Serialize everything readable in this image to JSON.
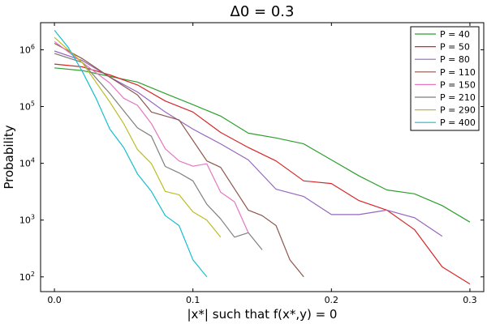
{
  "chart_data": {
    "type": "line",
    "title": "Δ0 = 0.3",
    "xlabel": "|x*| such that f(x*,y) = 0",
    "ylabel": "Probability",
    "xlim": [
      -0.01,
      0.31
    ],
    "ylim": [
      55,
      3000000
    ],
    "y_scale": "log",
    "grid": false,
    "legend_position": "top-right",
    "x_ticks": [
      0.0,
      0.1,
      0.2,
      0.3
    ],
    "x_tick_labels": [
      "0.0",
      "0.1",
      "0.2",
      "0.3"
    ],
    "y_ticks": [
      100,
      1000,
      10000,
      100000,
      1000000
    ],
    "y_tick_labels": [
      {
        "base": "10",
        "exp": "2"
      },
      {
        "base": "10",
        "exp": "3"
      },
      {
        "base": "10",
        "exp": "4"
      },
      {
        "base": "10",
        "exp": "5"
      },
      {
        "base": "10",
        "exp": "6"
      }
    ],
    "series": [
      {
        "name": "P = 40",
        "color": "#2ca02c",
        "x": [
          0,
          0.02,
          0.04,
          0.06,
          0.08,
          0.1,
          0.12,
          0.14,
          0.16,
          0.18,
          0.2,
          0.22,
          0.24,
          0.26,
          0.28,
          0.3
        ],
        "y": [
          480000,
          430000,
          340000,
          270000,
          170000,
          108000,
          68000,
          34000,
          28000,
          22000,
          11500,
          6000,
          3400,
          2900,
          1800,
          920
        ]
      },
      {
        "name": "P = 50",
        "color": "#d62728",
        "x": [
          0,
          0.02,
          0.04,
          0.06,
          0.08,
          0.1,
          0.12,
          0.14,
          0.16,
          0.18,
          0.2,
          0.22,
          0.24,
          0.26,
          0.28,
          0.3
        ],
        "y": [
          560000,
          500000,
          360000,
          240000,
          125000,
          80000,
          35000,
          19000,
          11000,
          4900,
          4400,
          2200,
          1500,
          680,
          150,
          75
        ]
      },
      {
        "name": "P = 80",
        "color": "#9467bd",
        "x": [
          0,
          0.02,
          0.04,
          0.06,
          0.08,
          0.1,
          0.12,
          0.14,
          0.16,
          0.18,
          0.2,
          0.22,
          0.24,
          0.26,
          0.28
        ],
        "y": [
          950000,
          650000,
          330000,
          180000,
          80000,
          40000,
          22000,
          11500,
          3500,
          2600,
          1250,
          1250,
          1500,
          1100,
          520
        ]
      },
      {
        "name": "P = 110",
        "color": "#8c564b",
        "x": [
          0,
          0.02,
          0.04,
          0.06,
          0.07,
          0.09,
          0.11,
          0.12,
          0.14,
          0.15,
          0.16,
          0.17,
          0.18
        ],
        "y": [
          1300000,
          700000,
          330000,
          160000,
          80000,
          58000,
          11000,
          8500,
          1500,
          1200,
          800,
          200,
          100
        ]
      },
      {
        "name": "P = 150",
        "color": "#e377c2",
        "x": [
          0,
          0.02,
          0.04,
          0.05,
          0.06,
          0.07,
          0.08,
          0.09,
          0.1,
          0.11,
          0.12,
          0.13,
          0.14
        ],
        "y": [
          1400000,
          600000,
          260000,
          140000,
          105000,
          50000,
          18000,
          11000,
          8900,
          9800,
          3100,
          2100,
          600
        ]
      },
      {
        "name": "P = 210",
        "color": "#7f7f7f",
        "x": [
          0,
          0.02,
          0.04,
          0.06,
          0.07,
          0.08,
          0.09,
          0.1,
          0.11,
          0.12,
          0.13,
          0.14,
          0.15
        ],
        "y": [
          860000,
          600000,
          170000,
          42000,
          30000,
          8800,
          6800,
          4900,
          1900,
          1050,
          500,
          600,
          300
        ]
      },
      {
        "name": "P = 290",
        "color": "#bcbd22",
        "x": [
          0,
          0.02,
          0.04,
          0.05,
          0.06,
          0.07,
          0.08,
          0.09,
          0.1,
          0.11,
          0.12
        ],
        "y": [
          1650000,
          600000,
          120000,
          50000,
          17500,
          9900,
          3200,
          2800,
          1400,
          1000,
          500
        ]
      },
      {
        "name": "P = 400",
        "color": "#17becf",
        "x": [
          0,
          0.01,
          0.02,
          0.03,
          0.04,
          0.05,
          0.06,
          0.07,
          0.08,
          0.09,
          0.1,
          0.11
        ],
        "y": [
          2200000,
          1100000,
          420000,
          140000,
          40000,
          19000,
          6500,
          3200,
          1200,
          800,
          200,
          100
        ]
      }
    ]
  }
}
